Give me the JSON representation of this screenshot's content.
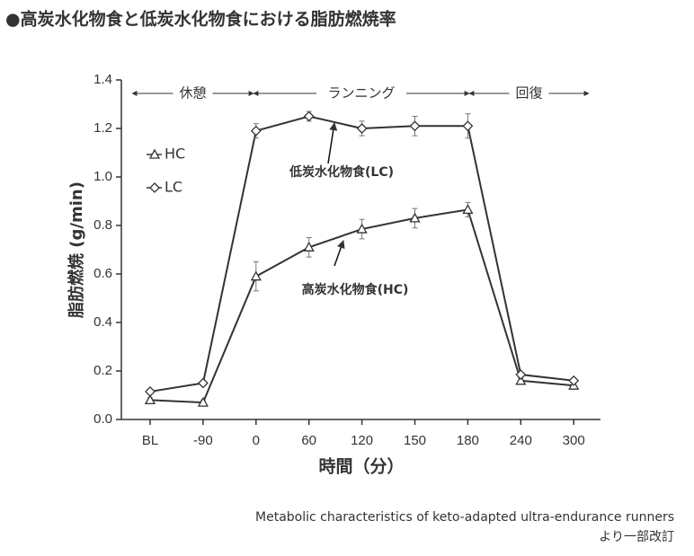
{
  "chart_data": {
    "type": "line",
    "title": "●高炭水化物食と低炭水化物食における脂肪燃焼率",
    "y_label": "脂肪燃焼 (g/min)",
    "x_label": "時間（分）",
    "source": [
      "Metabolic characteristics of keto-adapted ultra-endurance runners",
      "より一部改訂"
    ],
    "phases": [
      "休憩",
      "ランニング",
      "回復"
    ],
    "annotations": [
      "低炭水化物食(LC)",
      "高炭水化物食(HC)"
    ],
    "categories": [
      "BL",
      "-90",
      "0",
      "60",
      "120",
      "150",
      "180",
      "240",
      "300"
    ],
    "series": [
      {
        "name": "HC",
        "color": "#333333",
        "marker": "triangle",
        "values": [
          0.08,
          0.07,
          0.59,
          0.71,
          0.785,
          0.83,
          0.865,
          0.16,
          0.14
        ],
        "errors": [
          0.01,
          0.01,
          0.06,
          0.04,
          0.04,
          0.04,
          0.03,
          0.01,
          0.01
        ]
      },
      {
        "name": "LC",
        "color": "#333333",
        "marker": "diamond",
        "values": [
          0.115,
          0.15,
          1.19,
          1.25,
          1.2,
          1.21,
          1.21,
          0.185,
          0.16
        ],
        "errors": [
          0.01,
          0.01,
          0.03,
          0.02,
          0.03,
          0.04,
          0.05,
          0.01,
          0.01
        ]
      }
    ],
    "ylim": [
      0,
      1.4
    ],
    "yticks": [
      {
        "value": 0,
        "label": "0.0"
      },
      0.2,
      0.4,
      0.6,
      0.8,
      {
        "value": 1,
        "label": "1.0"
      },
      1.2,
      1.4
    ]
  }
}
